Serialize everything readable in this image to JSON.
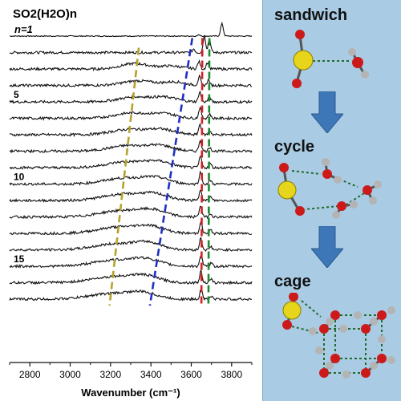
{
  "chart_data": {
    "type": "line",
    "title": "SO2(H2O)n",
    "xlabel": "Wavenumber (cm⁻¹)",
    "ylabel": "",
    "xlim": [
      2700,
      3900
    ],
    "xticks": [
      2800,
      3000,
      3200,
      3400,
      3600,
      3800
    ],
    "n_label": "n=1",
    "size_labels": [
      {
        "text": "5",
        "trace": 5
      },
      {
        "text": "10",
        "trace": 10
      },
      {
        "text": "15",
        "trace": 15
      }
    ],
    "series": [
      {
        "n": 1,
        "broad": [],
        "peaks": [
          [
            3640,
            0.6
          ],
          [
            3752,
            6
          ]
        ]
      },
      {
        "n": 2,
        "broad": [],
        "peaks": [
          [
            3612,
            1.8
          ],
          [
            3665,
            8
          ],
          [
            3690,
            6.5
          ]
        ]
      },
      {
        "n": 3,
        "broad": [
          [
            3320,
            2.6,
            95
          ],
          [
            3500,
            1.4,
            80
          ]
        ],
        "peaks": [
          [
            3638,
            3.5
          ],
          [
            3680,
            3
          ]
        ]
      },
      {
        "n": 4,
        "broad": [
          [
            3340,
            2.2,
            110
          ],
          [
            3520,
            1.6,
            70
          ]
        ],
        "peaks": [
          [
            3640,
            4.2
          ],
          [
            3685,
            2.6
          ]
        ]
      },
      {
        "n": 5,
        "broad": [
          [
            3330,
            2.4,
            120
          ],
          [
            3480,
            1.8,
            80
          ]
        ],
        "peaks": [
          [
            3642,
            4.8
          ],
          [
            3690,
            2.4
          ]
        ]
      },
      {
        "n": 6,
        "broad": [
          [
            3310,
            2.6,
            120
          ],
          [
            3470,
            2.0,
            80
          ]
        ],
        "peaks": [
          [
            3643,
            5.0
          ],
          [
            3690,
            2.2
          ]
        ]
      },
      {
        "n": 7,
        "broad": [
          [
            3300,
            2.6,
            130
          ],
          [
            3460,
            2.2,
            85
          ]
        ],
        "peaks": [
          [
            3643,
            5.0
          ],
          [
            3692,
            2.0
          ]
        ]
      },
      {
        "n": 8,
        "broad": [
          [
            3290,
            2.7,
            130
          ],
          [
            3450,
            2.4,
            85
          ]
        ],
        "peaks": [
          [
            3644,
            5.2
          ],
          [
            3692,
            2.0
          ]
        ]
      },
      {
        "n": 9,
        "broad": [
          [
            3280,
            2.8,
            135
          ],
          [
            3440,
            2.6,
            90
          ]
        ],
        "peaks": [
          [
            3645,
            5.4
          ],
          [
            3694,
            1.9
          ]
        ]
      },
      {
        "n": 10,
        "broad": [
          [
            3270,
            2.9,
            140
          ],
          [
            3430,
            2.7,
            90
          ]
        ],
        "peaks": [
          [
            3645,
            5.5
          ],
          [
            3694,
            1.8
          ]
        ]
      },
      {
        "n": 11,
        "broad": [
          [
            3260,
            3.0,
            140
          ],
          [
            3420,
            2.8,
            95
          ]
        ],
        "peaks": [
          [
            3646,
            5.5
          ],
          [
            3695,
            1.7
          ]
        ]
      },
      {
        "n": 12,
        "broad": [
          [
            3250,
            3.0,
            145
          ],
          [
            3410,
            2.9,
            95
          ]
        ],
        "peaks": [
          [
            3646,
            5.6
          ],
          [
            3696,
            1.7
          ]
        ]
      },
      {
        "n": 13,
        "broad": [
          [
            3240,
            3.0,
            145
          ],
          [
            3400,
            3.0,
            95
          ]
        ],
        "peaks": [
          [
            3647,
            5.6
          ],
          [
            3696,
            1.6
          ]
        ]
      },
      {
        "n": 14,
        "broad": [
          [
            3230,
            2.9,
            150
          ],
          [
            3390,
            3.0,
            95
          ]
        ],
        "peaks": [
          [
            3647,
            5.6
          ],
          [
            3697,
            1.6
          ]
        ]
      },
      {
        "n": 15,
        "broad": [
          [
            3220,
            2.9,
            150
          ],
          [
            3380,
            3.0,
            100
          ]
        ],
        "peaks": [
          [
            3648,
            5.6
          ],
          [
            3698,
            1.5
          ]
        ]
      },
      {
        "n": 16,
        "broad": [
          [
            3210,
            2.8,
            150
          ],
          [
            3370,
            3.0,
            100
          ]
        ],
        "peaks": [
          [
            3648,
            5.6
          ],
          [
            3698,
            1.5
          ]
        ]
      },
      {
        "n": 17,
        "broad": [
          [
            3200,
            2.6,
            150
          ],
          [
            3360,
            2.8,
            100
          ]
        ],
        "peaks": [
          [
            3649,
            5.2
          ],
          [
            3699,
            1.4
          ]
        ]
      }
    ],
    "guide_lines": [
      {
        "color": "#b5a22a",
        "label": "",
        "x_top": 3340,
        "x_bottom": 3195
      },
      {
        "color": "#1f2fc4",
        "label": "",
        "x_top": 3605,
        "x_bottom": 3395
      },
      {
        "color": "#d42020",
        "label": "",
        "x_top": 3655,
        "x_bottom": 3650
      },
      {
        "color": "#1a8a2e",
        "label": "",
        "x_top": 3690,
        "x_bottom": 3685
      }
    ]
  },
  "structures": [
    {
      "label": "sandwich"
    },
    {
      "label": "cycle"
    },
    {
      "label": "cage"
    }
  ],
  "colors": {
    "panel_bg": "#a9cbe4",
    "arrow": "#3e77b8",
    "sulfur": "#e6d51a",
    "oxygen": "#cc1a1a",
    "hydrogen": "#b4b4b4",
    "hbond": "#1f6b2a"
  }
}
